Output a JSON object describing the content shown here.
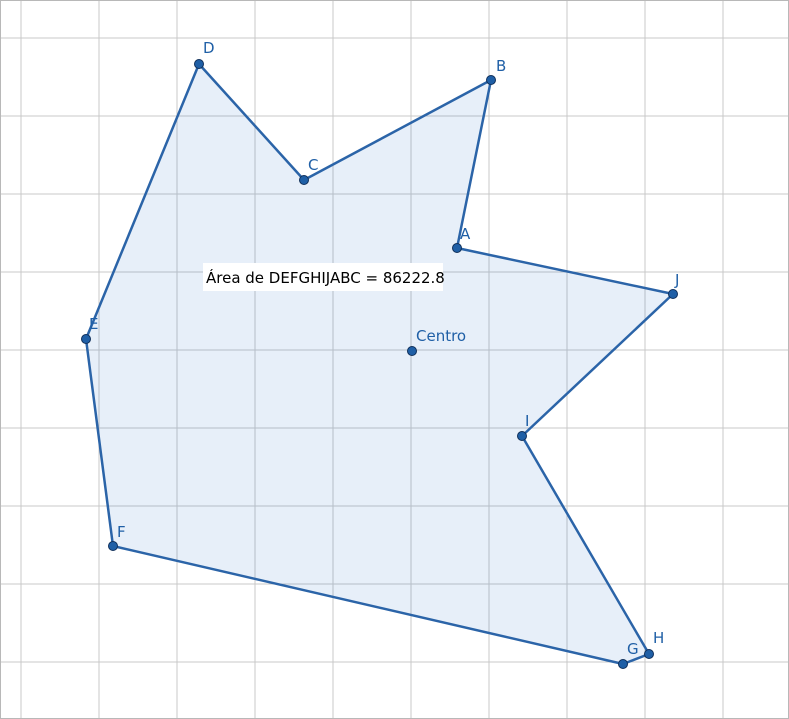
{
  "area_label": "Área de  DEFGHIJABC = 86222.8",
  "colors": {
    "polygon_stroke": "#2b64a8",
    "polygon_fill": "#e8f0f9",
    "point": "#1f5fa6",
    "grid": "#c8c8c8"
  },
  "points": [
    {
      "name": "D",
      "label": "D"
    },
    {
      "name": "C",
      "label": "C"
    },
    {
      "name": "B",
      "label": "B"
    },
    {
      "name": "A",
      "label": "A"
    },
    {
      "name": "J",
      "label": "J"
    },
    {
      "name": "E",
      "label": "E"
    },
    {
      "name": "Centro",
      "label": "Centro"
    },
    {
      "name": "I",
      "label": "I"
    },
    {
      "name": "F",
      "label": "F"
    },
    {
      "name": "G",
      "label": "G"
    },
    {
      "name": "H",
      "label": "H"
    }
  ]
}
